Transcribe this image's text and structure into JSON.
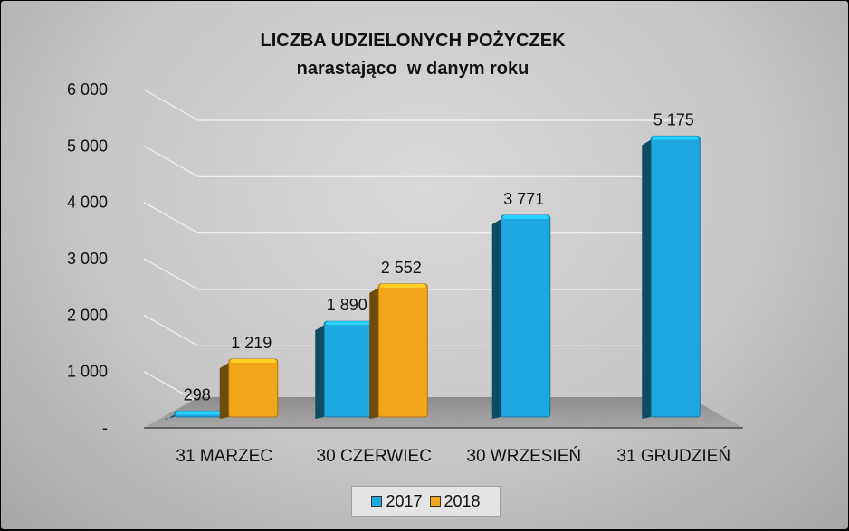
{
  "chart_data": {
    "type": "bar",
    "title": "LICZBA UDZIELONYCH POŻYCZEK",
    "subtitle": "narastająco  w danym roku",
    "categories": [
      "31 MARZEC",
      "30 CZERWIEC",
      "30 WRZESIEŃ",
      "31 GRUDZIEŃ"
    ],
    "series": [
      {
        "name": "2017",
        "values": [
          298,
          1890,
          3771,
          5175
        ],
        "labels": [
          "298",
          "1 890",
          "3 771",
          "5 175"
        ],
        "color": "#1fa8e0"
      },
      {
        "name": "2018",
        "values": [
          1219,
          2552,
          null,
          null
        ],
        "labels": [
          "1 219",
          "2 552",
          "",
          ""
        ],
        "color": "#f2a71b"
      }
    ],
    "ylim": [
      0,
      6000
    ],
    "yticks": [
      0,
      1000,
      2000,
      3000,
      4000,
      5000,
      6000
    ],
    "ytick_labels": [
      "-",
      "1 000",
      "2 000",
      "3 000",
      "4 000",
      "5 000",
      "6 000"
    ],
    "grid": true,
    "legend_position": "bottom",
    "style": "3d-column"
  }
}
